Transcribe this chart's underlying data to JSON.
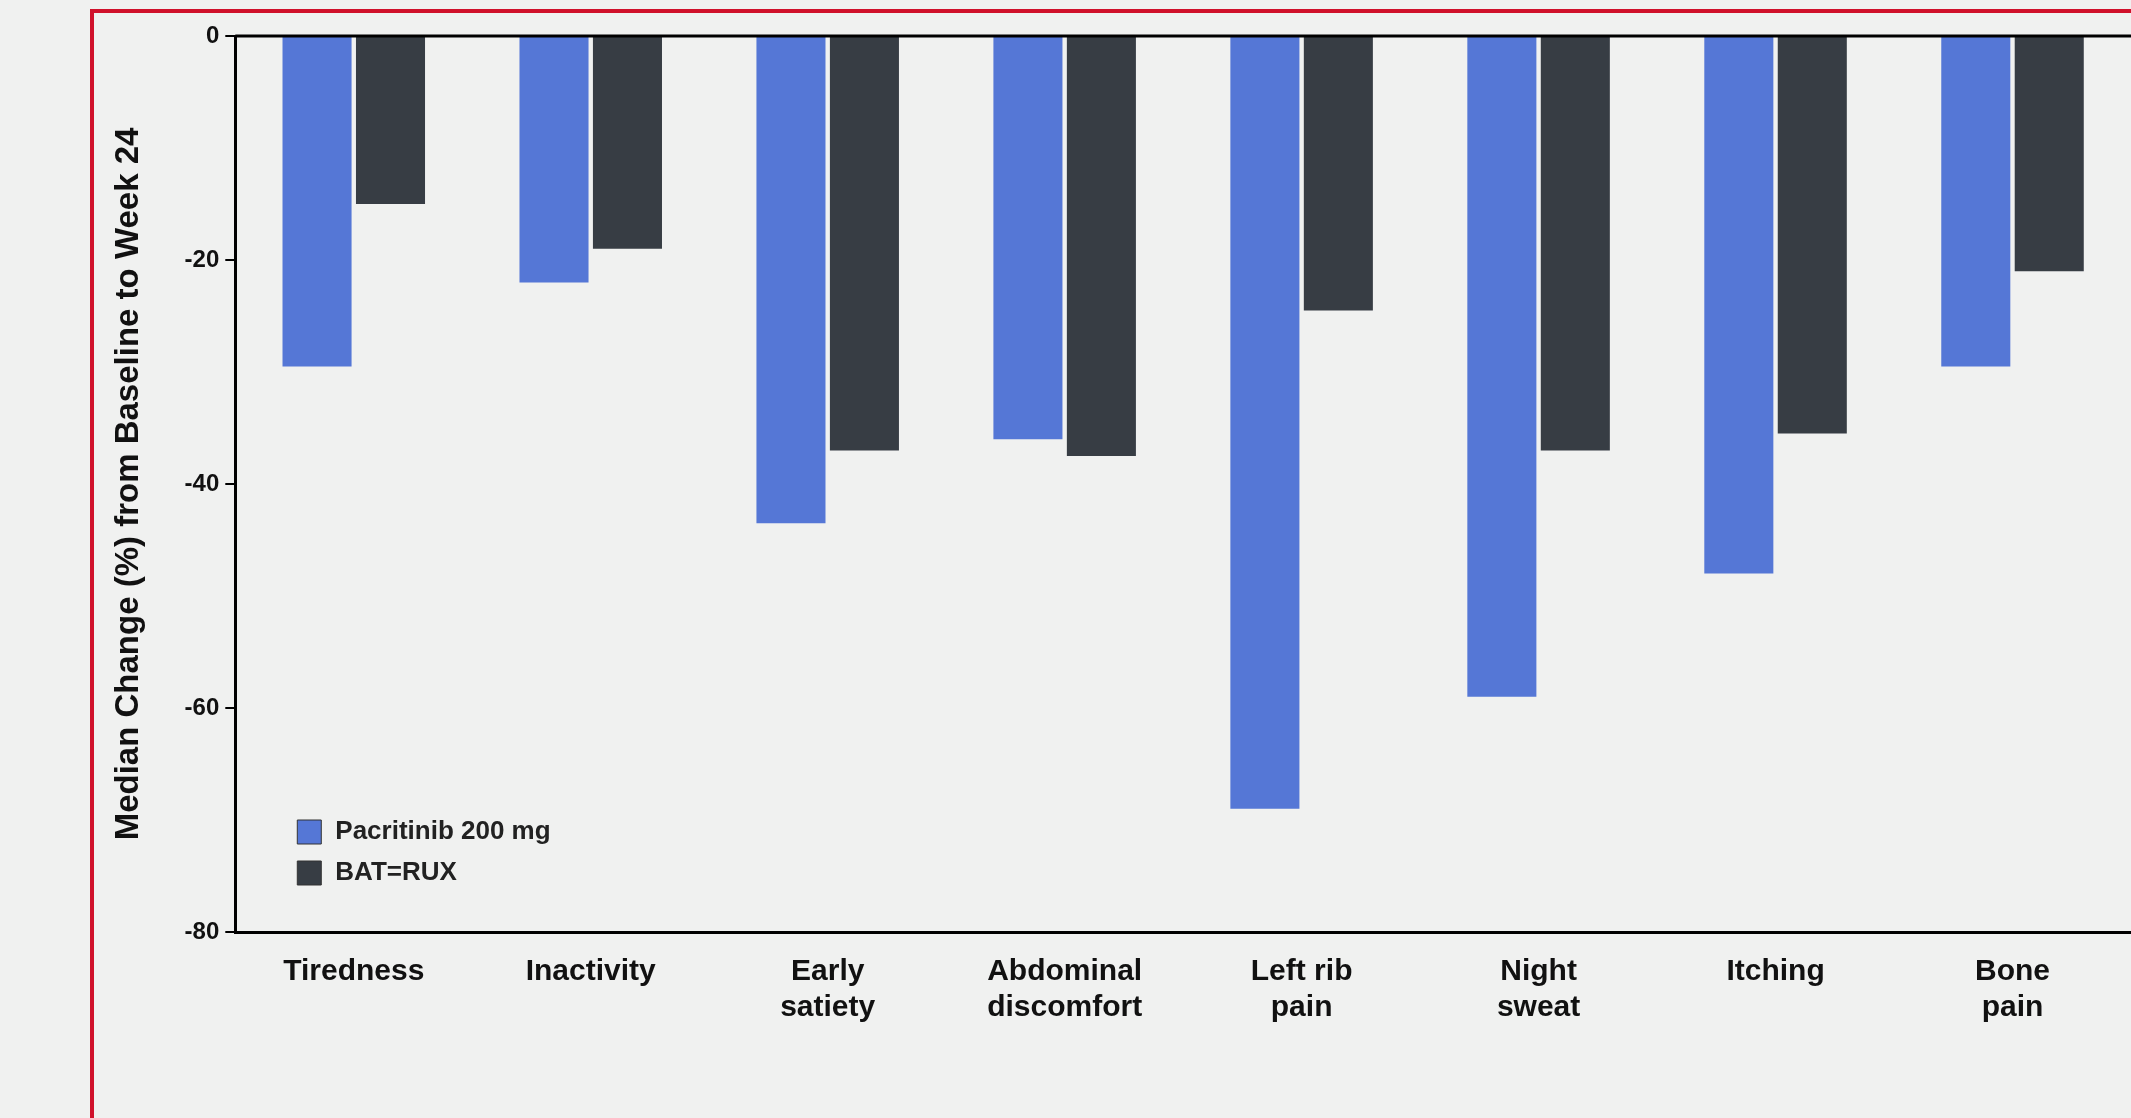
{
  "chart_data": {
    "type": "bar",
    "ylabel": "Median Change (%) from Baseline to Week 24",
    "categories": [
      "Tiredness",
      "Inactivity",
      "Early\nsatiety",
      "Abdominal\ndiscomfort",
      "Left rib\npain",
      "Night\nsweat",
      "Itching",
      "Bone\npain"
    ],
    "series": [
      {
        "name": "Pacritinib 200 mg",
        "color": "#5577d6",
        "values": [
          -29.5,
          -22,
          -43.5,
          -36,
          -69,
          -59,
          -48,
          -29.5
        ]
      },
      {
        "name": "BAT=RUX",
        "color": "#373d44",
        "values": [
          -15,
          -19,
          -37,
          -37.5,
          -24.5,
          -37,
          -35.5,
          -21
        ]
      }
    ],
    "ylim": [
      -80,
      0
    ],
    "yticks": [
      -80,
      -60,
      -40,
      -20,
      0
    ],
    "grid": false,
    "legend": "bottom left"
  }
}
